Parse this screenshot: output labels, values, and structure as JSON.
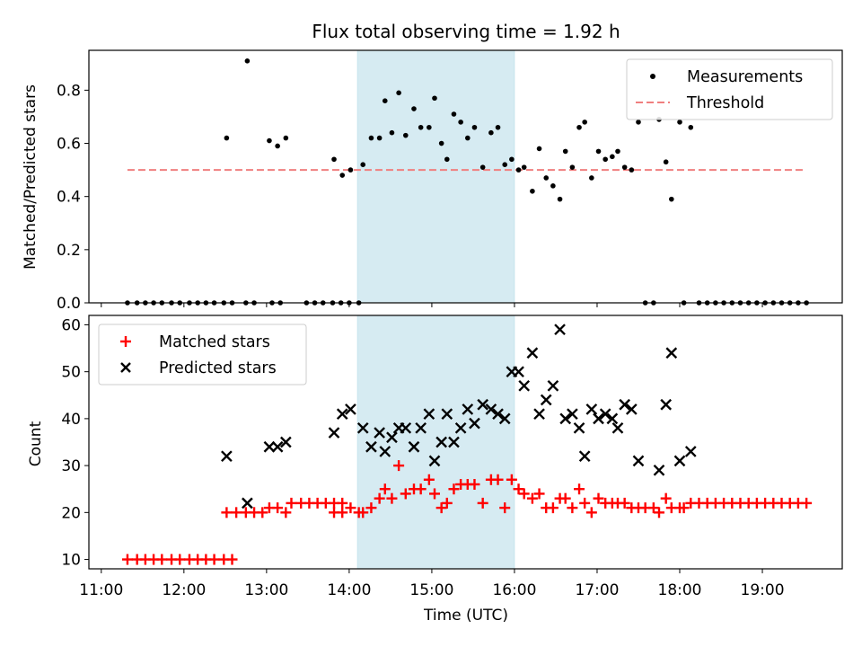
{
  "chart_data": [
    {
      "type": "scatter",
      "title": "Flux total observing time = 1.92 h",
      "ylabel": "Matched/Predicted stars",
      "xlabel": "",
      "ylim": [
        0,
        0.95
      ],
      "xlim": [
        "10:51",
        "19:58"
      ],
      "yticks": [
        "0.0",
        "0.2",
        "0.4",
        "0.6",
        "0.8"
      ],
      "ytick_values": [
        0,
        0.2,
        0.4,
        0.6,
        0.8
      ],
      "shaded_region": [
        "14:06",
        "16:00"
      ],
      "threshold": {
        "name": "Threshold",
        "value": 0.5,
        "x": [
          "11:19",
          "19:30"
        ],
        "color": "#f07f7f"
      },
      "legend": {
        "placement": "top-right",
        "entries": [
          "Measurements",
          "Threshold"
        ]
      },
      "series": [
        {
          "name": "Measurements",
          "color": "#000000",
          "points": [
            [
              "11:19",
              0
            ],
            [
              "11:26",
              0
            ],
            [
              "11:32",
              0
            ],
            [
              "11:38",
              0
            ],
            [
              "11:44",
              0
            ],
            [
              "11:51",
              0
            ],
            [
              "11:57",
              0
            ],
            [
              "12:04",
              0
            ],
            [
              "12:10",
              0
            ],
            [
              "12:16",
              0
            ],
            [
              "12:22",
              0
            ],
            [
              "12:29",
              0
            ],
            [
              "12:35",
              0
            ],
            [
              "12:31",
              0.62
            ],
            [
              "12:45",
              0
            ],
            [
              "12:51",
              0
            ],
            [
              "12:46",
              0.91
            ],
            [
              "13:04",
              0
            ],
            [
              "13:10",
              0
            ],
            [
              "13:02",
              0.61
            ],
            [
              "13:08",
              0.59
            ],
            [
              "13:14",
              0.62
            ],
            [
              "13:29",
              0
            ],
            [
              "13:35",
              0
            ],
            [
              "13:41",
              0
            ],
            [
              "13:48",
              0
            ],
            [
              "13:54",
              0
            ],
            [
              "14:00",
              0
            ],
            [
              "13:49",
              0.54
            ],
            [
              "13:55",
              0.48
            ],
            [
              "14:01",
              0.5
            ],
            [
              "14:07",
              0
            ],
            [
              "14:10",
              0.52
            ],
            [
              "14:16",
              0.62
            ],
            [
              "14:22",
              0.62
            ],
            [
              "14:26",
              0.76
            ],
            [
              "14:31",
              0.64
            ],
            [
              "14:36",
              0.79
            ],
            [
              "14:41",
              0.63
            ],
            [
              "14:47",
              0.73
            ],
            [
              "14:52",
              0.66
            ],
            [
              "14:58",
              0.66
            ],
            [
              "15:02",
              0.77
            ],
            [
              "15:07",
              0.6
            ],
            [
              "15:11",
              0.54
            ],
            [
              "15:16",
              0.71
            ],
            [
              "15:21",
              0.68
            ],
            [
              "15:26",
              0.62
            ],
            [
              "15:31",
              0.66
            ],
            [
              "15:37",
              0.51
            ],
            [
              "15:43",
              0.64
            ],
            [
              "15:48",
              0.66
            ],
            [
              "15:53",
              0.52
            ],
            [
              "15:58",
              0.54
            ],
            [
              "16:03",
              0.5
            ],
            [
              "16:07",
              0.51
            ],
            [
              "16:13",
              0.42
            ],
            [
              "16:18",
              0.58
            ],
            [
              "16:23",
              0.47
            ],
            [
              "16:28",
              0.44
            ],
            [
              "16:33",
              0.39
            ],
            [
              "16:37",
              0.57
            ],
            [
              "16:42",
              0.51
            ],
            [
              "16:47",
              0.66
            ],
            [
              "16:51",
              0.68
            ],
            [
              "16:56",
              0.47
            ],
            [
              "17:01",
              0.57
            ],
            [
              "17:06",
              0.54
            ],
            [
              "17:11",
              0.55
            ],
            [
              "17:15",
              0.57
            ],
            [
              "17:20",
              0.51
            ],
            [
              "17:25",
              0.5
            ],
            [
              "17:30",
              0.68
            ],
            [
              "17:35",
              0
            ],
            [
              "17:41",
              0
            ],
            [
              "17:45",
              0.69
            ],
            [
              "17:50",
              0.53
            ],
            [
              "17:54",
              0.39
            ],
            [
              "18:00",
              0.68
            ],
            [
              "18:03",
              0
            ],
            [
              "18:08",
              0.66
            ],
            [
              "18:14",
              0
            ],
            [
              "18:20",
              0
            ],
            [
              "18:26",
              0
            ],
            [
              "18:32",
              0
            ],
            [
              "18:38",
              0
            ],
            [
              "18:44",
              0
            ],
            [
              "18:50",
              0
            ],
            [
              "18:56",
              0
            ],
            [
              "19:02",
              0
            ],
            [
              "19:08",
              0
            ],
            [
              "19:14",
              0
            ],
            [
              "19:20",
              0
            ],
            [
              "19:26",
              0
            ],
            [
              "19:32",
              0
            ]
          ]
        }
      ]
    },
    {
      "type": "scatter",
      "title": "",
      "ylabel": "Count",
      "xlabel": "Time (UTC)",
      "ylim": [
        8,
        62
      ],
      "xlim": [
        "10:51",
        "19:58"
      ],
      "yticks": [
        "10",
        "20",
        "30",
        "40",
        "50",
        "60"
      ],
      "ytick_values": [
        10,
        20,
        30,
        40,
        50,
        60
      ],
      "xticks": [
        "11:00",
        "12:00",
        "13:00",
        "14:00",
        "15:00",
        "16:00",
        "17:00",
        "18:00",
        "19:00"
      ],
      "shaded_region": [
        "14:06",
        "16:00"
      ],
      "legend": {
        "placement": "top-left",
        "entries": [
          "Matched stars",
          "Predicted stars"
        ]
      },
      "series": [
        {
          "name": "Matched stars",
          "color": "#ff0000",
          "marker": "plus",
          "points": [
            [
              "11:19",
              10
            ],
            [
              "11:26",
              10
            ],
            [
              "11:32",
              10
            ],
            [
              "11:38",
              10
            ],
            [
              "11:44",
              10
            ],
            [
              "11:51",
              10
            ],
            [
              "11:57",
              10
            ],
            [
              "12:04",
              10
            ],
            [
              "12:10",
              10
            ],
            [
              "12:16",
              10
            ],
            [
              "12:22",
              10
            ],
            [
              "12:29",
              10
            ],
            [
              "12:35",
              10
            ],
            [
              "12:31",
              20
            ],
            [
              "12:38",
              20
            ],
            [
              "12:45",
              20
            ],
            [
              "12:51",
              20
            ],
            [
              "12:57",
              20
            ],
            [
              "13:02",
              21
            ],
            [
              "13:08",
              21
            ],
            [
              "13:14",
              20
            ],
            [
              "13:18",
              22
            ],
            [
              "13:25",
              22
            ],
            [
              "13:31",
              22
            ],
            [
              "13:37",
              22
            ],
            [
              "13:43",
              22
            ],
            [
              "13:49",
              22
            ],
            [
              "13:55",
              22
            ],
            [
              "13:49",
              20
            ],
            [
              "13:55",
              20
            ],
            [
              "14:01",
              21
            ],
            [
              "14:07",
              20
            ],
            [
              "14:10",
              20
            ],
            [
              "14:16",
              21
            ],
            [
              "14:22",
              23
            ],
            [
              "14:26",
              25
            ],
            [
              "14:31",
              23
            ],
            [
              "14:36",
              30
            ],
            [
              "14:41",
              24
            ],
            [
              "14:47",
              25
            ],
            [
              "14:52",
              25
            ],
            [
              "14:58",
              27
            ],
            [
              "15:02",
              24
            ],
            [
              "15:07",
              21
            ],
            [
              "15:11",
              22
            ],
            [
              "15:16",
              25
            ],
            [
              "15:21",
              26
            ],
            [
              "15:26",
              26
            ],
            [
              "15:31",
              26
            ],
            [
              "15:37",
              22
            ],
            [
              "15:43",
              27
            ],
            [
              "15:48",
              27
            ],
            [
              "15:53",
              21
            ],
            [
              "15:58",
              27
            ],
            [
              "16:03",
              25
            ],
            [
              "16:07",
              24
            ],
            [
              "16:13",
              23
            ],
            [
              "16:18",
              24
            ],
            [
              "16:23",
              21
            ],
            [
              "16:28",
              21
            ],
            [
              "16:33",
              23
            ],
            [
              "16:37",
              23
            ],
            [
              "16:42",
              21
            ],
            [
              "16:47",
              25
            ],
            [
              "16:51",
              22
            ],
            [
              "16:56",
              20
            ],
            [
              "17:01",
              23
            ],
            [
              "17:06",
              22
            ],
            [
              "17:11",
              22
            ],
            [
              "17:15",
              22
            ],
            [
              "17:20",
              22
            ],
            [
              "17:25",
              21
            ],
            [
              "17:30",
              21
            ],
            [
              "17:35",
              21
            ],
            [
              "17:41",
              21
            ],
            [
              "17:45",
              20
            ],
            [
              "17:50",
              23
            ],
            [
              "17:54",
              21
            ],
            [
              "18:00",
              21
            ],
            [
              "18:03",
              21
            ],
            [
              "18:08",
              22
            ],
            [
              "18:14",
              22
            ],
            [
              "18:20",
              22
            ],
            [
              "18:26",
              22
            ],
            [
              "18:32",
              22
            ],
            [
              "18:38",
              22
            ],
            [
              "18:44",
              22
            ],
            [
              "18:50",
              22
            ],
            [
              "18:56",
              22
            ],
            [
              "19:02",
              22
            ],
            [
              "19:08",
              22
            ],
            [
              "19:14",
              22
            ],
            [
              "19:20",
              22
            ],
            [
              "19:26",
              22
            ],
            [
              "19:32",
              22
            ]
          ]
        },
        {
          "name": "Predicted stars",
          "color": "#000000",
          "marker": "x",
          "points": [
            [
              "12:31",
              32
            ],
            [
              "12:46",
              22
            ],
            [
              "13:02",
              34
            ],
            [
              "13:08",
              34
            ],
            [
              "13:14",
              35
            ],
            [
              "13:49",
              37
            ],
            [
              "13:55",
              41
            ],
            [
              "14:01",
              42
            ],
            [
              "14:10",
              38
            ],
            [
              "14:16",
              34
            ],
            [
              "14:22",
              37
            ],
            [
              "14:26",
              33
            ],
            [
              "14:31",
              36
            ],
            [
              "14:36",
              38
            ],
            [
              "14:41",
              38
            ],
            [
              "14:47",
              34
            ],
            [
              "14:52",
              38
            ],
            [
              "14:58",
              41
            ],
            [
              "15:02",
              31
            ],
            [
              "15:07",
              35
            ],
            [
              "15:11",
              41
            ],
            [
              "15:16",
              35
            ],
            [
              "15:21",
              38
            ],
            [
              "15:26",
              42
            ],
            [
              "15:31",
              39
            ],
            [
              "15:37",
              43
            ],
            [
              "15:43",
              42
            ],
            [
              "15:48",
              41
            ],
            [
              "15:53",
              40
            ],
            [
              "15:58",
              50
            ],
            [
              "16:03",
              50
            ],
            [
              "16:07",
              47
            ],
            [
              "16:13",
              54
            ],
            [
              "16:18",
              41
            ],
            [
              "16:23",
              44
            ],
            [
              "16:28",
              47
            ],
            [
              "16:33",
              59
            ],
            [
              "16:37",
              40
            ],
            [
              "16:42",
              41
            ],
            [
              "16:47",
              38
            ],
            [
              "16:51",
              32
            ],
            [
              "16:56",
              42
            ],
            [
              "17:01",
              40
            ],
            [
              "17:06",
              41
            ],
            [
              "17:11",
              40
            ],
            [
              "17:15",
              38
            ],
            [
              "17:20",
              43
            ],
            [
              "17:25",
              42
            ],
            [
              "17:30",
              31
            ],
            [
              "17:45",
              29
            ],
            [
              "17:50",
              43
            ],
            [
              "17:54",
              54
            ],
            [
              "18:00",
              31
            ],
            [
              "18:08",
              33
            ]
          ]
        }
      ]
    }
  ]
}
